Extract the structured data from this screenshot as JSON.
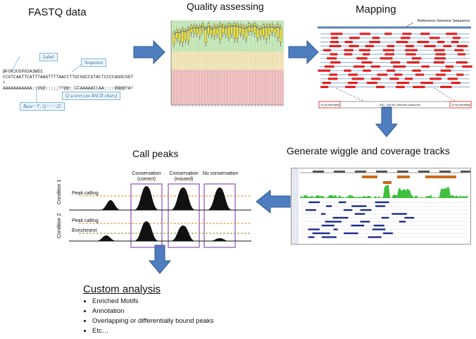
{
  "steps": {
    "fastq": "FASTQ data",
    "quality": "Quality assessing",
    "mapping": "Mapping",
    "wiggle": "Generate wiggle and coverage tracks",
    "peaks": "Call peaks",
    "custom": "Custom analysis"
  },
  "fastq": {
    "label_callout": "Label",
    "sequence_callout": "Sequence",
    "qscore_callout": "Q scores (as ASCII chars)",
    "base_callout": "Base='I', Q='-'=25",
    "line1": "@FORJUSP02A3WD1",
    "line2": "CCGTCAATTCATTTAAGTTTTAACCTTGCGGCCGTACTCCCCAGGCGGT",
    "line3": "+",
    "line4": "AAAAAAAAAAA::99@:::;;??@@::FFAAAAACCAA::::BB@@?A?"
  },
  "mapping": {
    "reference_label": "Reference Genome Sequence",
    "left_label": "20 bp identified",
    "middle_label": "320 - 400 bp unknown sequence",
    "right_label": "20 bp identified"
  },
  "peaks": {
    "col1": "Conservation (correct)",
    "col1a": "Conservation",
    "col1b": "(correct)",
    "col2a": "Conservation",
    "col2b": "(missed)",
    "col3": "No conservation",
    "row1_peak": "Peak calling",
    "row2_peak": "Peak calling",
    "row2_enrich": "Enrichment",
    "cond1": "Condition 1",
    "cond2": "Condition 2"
  },
  "custom_items": [
    "Enriched Motifs",
    "Annotation",
    "Overlapping or differentially bound peaks",
    "Etc…"
  ],
  "colors": {
    "arrow": "#4f7ec0",
    "arrow_border": "#2f5a92",
    "read_red": "#e02020",
    "ref_blue": "#5b83b5",
    "peak_box": "#8e4fb5",
    "orange_dash": "#e8861a",
    "green_dash": "#6b9a2a",
    "track_green": "#3fbf3f",
    "track_orange": "#c86a1a"
  }
}
